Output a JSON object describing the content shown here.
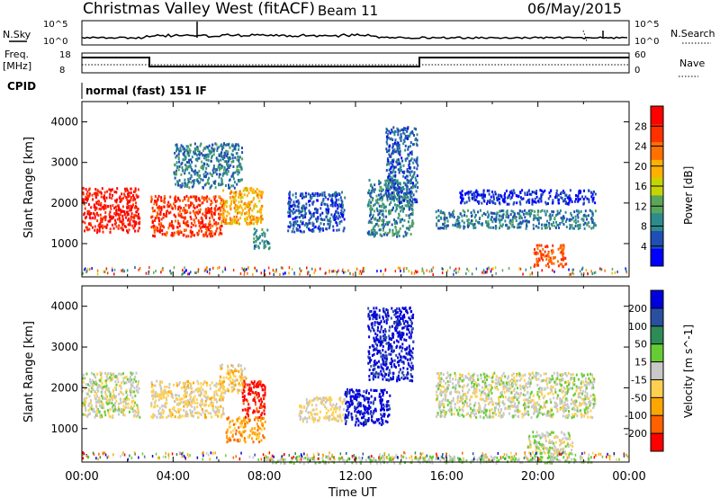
{
  "header": {
    "title": "Christmas Valley West (fitACF)",
    "beam": "Beam 11",
    "date": "06/May/2015"
  },
  "summary": {
    "nsky_label": "N.Sky",
    "nsky_ticks": [
      "10^5",
      "10^0"
    ],
    "nsearch_label": "N.Search",
    "nsearch_ticks": [
      "10^5",
      "10^0"
    ],
    "freq_label_1": "Freq.",
    "freq_label_2": "[MHz]",
    "freq_ticks": [
      "18",
      "8"
    ],
    "nave_label": "Nave",
    "nave_ticks": [
      "60",
      "0"
    ],
    "cpid_label": "CPID",
    "cpid_text": "normal (fast) 151 IF"
  },
  "colors": {
    "power": [
      "#0000ff",
      "#1f4fb4",
      "#2e8b8b",
      "#5aa65a",
      "#c8d400",
      "#ffb000",
      "#ff7000",
      "#ff3000",
      "#ff0000"
    ],
    "velocity": [
      "#ff0000",
      "#ff6000",
      "#ffa500",
      "#ffd050",
      "#c8c8c8",
      "#66cc33",
      "#2e8b57",
      "#2a4fa0",
      "#0000dd"
    ],
    "ground": "#cccccc"
  },
  "chart_data": [
    {
      "type": "heatmap",
      "name": "power",
      "xlabel": "Time UT",
      "ylabel": "Slant Range [km]",
      "xlim": [
        0,
        24
      ],
      "ylim": [
        180,
        4500
      ],
      "yticks": [
        "1000",
        "2000",
        "3000",
        "4000"
      ],
      "colorbar_label": "Power [dB]",
      "colorbar_ticks": [
        "4",
        "8",
        "12",
        "16",
        "20",
        "24",
        "28"
      ],
      "colorbar_range": [
        0,
        32
      ],
      "regions": [
        {
          "t0": 0.0,
          "t1": 2.5,
          "r0": 1300,
          "r1": 2400,
          "level": 29
        },
        {
          "t0": 3.0,
          "t1": 6.2,
          "r0": 1200,
          "r1": 2200,
          "level": 27
        },
        {
          "t0": 6.0,
          "t1": 7.9,
          "r0": 1500,
          "r1": 2400,
          "level": 20
        },
        {
          "t0": 4.0,
          "t1": 7.0,
          "r0": 2400,
          "r1": 3500,
          "level": 8
        },
        {
          "t0": 7.5,
          "t1": 8.2,
          "r0": 900,
          "r1": 1400,
          "level": 10
        },
        {
          "t0": 9.0,
          "t1": 11.5,
          "r0": 1300,
          "r1": 2300,
          "level": 5
        },
        {
          "t0": 12.5,
          "t1": 14.5,
          "r0": 1200,
          "r1": 2600,
          "level": 9
        },
        {
          "t0": 13.3,
          "t1": 14.7,
          "r0": 2000,
          "r1": 3900,
          "level": 6
        },
        {
          "t0": 15.5,
          "t1": 22.5,
          "r0": 1400,
          "r1": 1850,
          "level": 8
        },
        {
          "t0": 16.5,
          "t1": 22.5,
          "r0": 2000,
          "r1": 2350,
          "level": 3
        },
        {
          "t0": 19.8,
          "t1": 21.2,
          "r0": 450,
          "r1": 1000,
          "level": 25
        }
      ]
    },
    {
      "type": "heatmap",
      "name": "velocity",
      "xlabel": "Time UT",
      "ylabel": "Slant Range [km]",
      "xlim": [
        0,
        24
      ],
      "ylim": [
        180,
        4500
      ],
      "yticks": [
        "1000",
        "2000",
        "3000",
        "4000"
      ],
      "xticks": [
        "00:00",
        "04:00",
        "08:00",
        "12:00",
        "16:00",
        "20:00",
        "00:00"
      ],
      "colorbar_label": "Velocity [m s^-1]",
      "colorbar_ticks": [
        "-200",
        "-100",
        "-50",
        "-15",
        "15",
        "50",
        "100",
        "200"
      ],
      "colorbar_range": [
        -250,
        250
      ],
      "regions": [
        {
          "t0": 0.0,
          "t1": 2.5,
          "r0": 1300,
          "r1": 2400,
          "level": 0
        },
        {
          "t0": 3.0,
          "t1": 6.2,
          "r0": 1300,
          "r1": 2200,
          "level": -40
        },
        {
          "t0": 6.0,
          "t1": 7.2,
          "r0": 1900,
          "r1": 2600,
          "level": -60
        },
        {
          "t0": 6.3,
          "t1": 8.0,
          "r0": 700,
          "r1": 1300,
          "level": -120
        },
        {
          "t0": 7.0,
          "t1": 8.0,
          "r0": 1300,
          "r1": 2200,
          "level": -230
        },
        {
          "t0": 9.5,
          "t1": 11.5,
          "r0": 1200,
          "r1": 1800,
          "level": -30
        },
        {
          "t0": 11.5,
          "t1": 13.5,
          "r0": 1100,
          "r1": 2000,
          "level": 230
        },
        {
          "t0": 12.5,
          "t1": 14.5,
          "r0": 2200,
          "r1": 4000,
          "level": 220
        },
        {
          "t0": 15.5,
          "t1": 22.5,
          "r0": 1300,
          "r1": 2400,
          "level": 0
        },
        {
          "t0": 19.5,
          "t1": 21.5,
          "r0": 400,
          "r1": 950,
          "level": 0
        },
        {
          "t0": 8.0,
          "t1": 22.5,
          "r0": 180,
          "r1": 350,
          "level": 30
        }
      ]
    }
  ]
}
